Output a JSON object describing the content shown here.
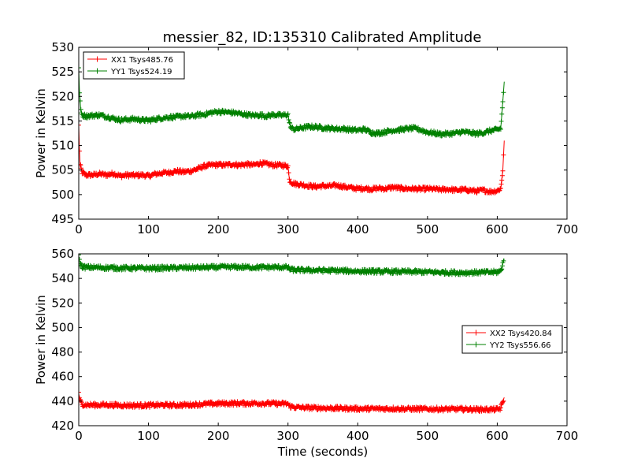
{
  "figure": {
    "title": "messier_82, ID:135310 Calibrated Amplitude"
  },
  "chart_data": [
    {
      "type": "line",
      "xlabel": "",
      "ylabel": "Power in Kelvin",
      "xlim": [
        0,
        700
      ],
      "ylim": [
        495,
        530
      ],
      "xticks": [
        0,
        100,
        200,
        300,
        400,
        500,
        600,
        700
      ],
      "yticks": [
        495,
        500,
        505,
        510,
        515,
        520,
        525,
        530
      ],
      "legend_position": "upper-left",
      "marker": "plus",
      "grid": false,
      "series": [
        {
          "name": "XX1 Tsys485.76",
          "color": "#ff0000",
          "points": [
            [
              0,
              514
            ],
            [
              1,
              509
            ],
            [
              2,
              506
            ],
            [
              5,
              504.5
            ],
            [
              10,
              504
            ],
            [
              20,
              504
            ],
            [
              30,
              504.2
            ],
            [
              40,
              504
            ],
            [
              50,
              504.3
            ],
            [
              60,
              503.8
            ],
            [
              70,
              504
            ],
            [
              80,
              503.9
            ],
            [
              90,
              504
            ],
            [
              100,
              503.8
            ],
            [
              110,
              504.2
            ],
            [
              120,
              504.4
            ],
            [
              130,
              504.5
            ],
            [
              140,
              504.8
            ],
            [
              150,
              504.6
            ],
            [
              160,
              504.8
            ],
            [
              170,
              505.2
            ],
            [
              180,
              505.8
            ],
            [
              190,
              506
            ],
            [
              200,
              506.1
            ],
            [
              210,
              506
            ],
            [
              220,
              506.2
            ],
            [
              230,
              506
            ],
            [
              240,
              506.2
            ],
            [
              250,
              506
            ],
            [
              260,
              506.4
            ],
            [
              270,
              506.2
            ],
            [
              280,
              506
            ],
            [
              290,
              506
            ],
            [
              300,
              505.8
            ],
            [
              302,
              503
            ],
            [
              305,
              502.5
            ],
            [
              310,
              502.2
            ],
            [
              320,
              502
            ],
            [
              330,
              501.8
            ],
            [
              340,
              501.6
            ],
            [
              350,
              501.8
            ],
            [
              360,
              501.7
            ],
            [
              370,
              501.9
            ],
            [
              380,
              501.6
            ],
            [
              390,
              501.4
            ],
            [
              400,
              501.2
            ],
            [
              410,
              501.3
            ],
            [
              420,
              501.1
            ],
            [
              430,
              501.3
            ],
            [
              440,
              501.2
            ],
            [
              450,
              501.5
            ],
            [
              460,
              501.3
            ],
            [
              470,
              501.2
            ],
            [
              480,
              501.2
            ],
            [
              490,
              501.1
            ],
            [
              500,
              501.2
            ],
            [
              510,
              501.1
            ],
            [
              520,
              501
            ],
            [
              530,
              501.1
            ],
            [
              540,
              500.9
            ],
            [
              550,
              501
            ],
            [
              560,
              500.9
            ],
            [
              570,
              500.7
            ],
            [
              580,
              500.9
            ],
            [
              590,
              500.6
            ],
            [
              600,
              500.8
            ],
            [
              605,
              501.2
            ],
            [
              608,
              505
            ],
            [
              610,
              511
            ]
          ]
        },
        {
          "name": "YY1 Tsys524.19",
          "color": "#008000",
          "points": [
            [
              0,
              525.5
            ],
            [
              1,
              521
            ],
            [
              3,
              517
            ],
            [
              5,
              516.2
            ],
            [
              10,
              516
            ],
            [
              20,
              516.1
            ],
            [
              30,
              516.2
            ],
            [
              40,
              515.9
            ],
            [
              50,
              515.5
            ],
            [
              60,
              515.2
            ],
            [
              70,
              515.3
            ],
            [
              80,
              515.4
            ],
            [
              90,
              515.2
            ],
            [
              100,
              515.1
            ],
            [
              110,
              515.4
            ],
            [
              120,
              515.6
            ],
            [
              130,
              515.8
            ],
            [
              140,
              515.8
            ],
            [
              150,
              516
            ],
            [
              160,
              515.9
            ],
            [
              170,
              516.2
            ],
            [
              180,
              516.3
            ],
            [
              190,
              516.7
            ],
            [
              200,
              516.9
            ],
            [
              210,
              516.8
            ],
            [
              220,
              516.7
            ],
            [
              230,
              516.5
            ],
            [
              240,
              516.3
            ],
            [
              250,
              516.1
            ],
            [
              260,
              516.2
            ],
            [
              270,
              516
            ],
            [
              280,
              516.3
            ],
            [
              290,
              516.1
            ],
            [
              300,
              516.3
            ],
            [
              302,
              514.5
            ],
            [
              305,
              513.5
            ],
            [
              310,
              513.3
            ],
            [
              320,
              513.6
            ],
            [
              330,
              513.8
            ],
            [
              340,
              513.8
            ],
            [
              350,
              513.6
            ],
            [
              360,
              513.5
            ],
            [
              370,
              513.4
            ],
            [
              380,
              513.4
            ],
            [
              390,
              513.2
            ],
            [
              400,
              513.1
            ],
            [
              410,
              513.3
            ],
            [
              420,
              512.6
            ],
            [
              430,
              512.5
            ],
            [
              440,
              512.8
            ],
            [
              450,
              513.1
            ],
            [
              460,
              513.2
            ],
            [
              470,
              513.4
            ],
            [
              480,
              513.5
            ],
            [
              490,
              513.2
            ],
            [
              500,
              512.7
            ],
            [
              510,
              512.5
            ],
            [
              520,
              512.3
            ],
            [
              530,
              512.4
            ],
            [
              540,
              512.5
            ],
            [
              550,
              512.8
            ],
            [
              560,
              512.6
            ],
            [
              570,
              512.4
            ],
            [
              580,
              512.6
            ],
            [
              590,
              513
            ],
            [
              600,
              513.2
            ],
            [
              605,
              513.5
            ],
            [
              608,
              519
            ],
            [
              610,
              523
            ]
          ]
        }
      ]
    },
    {
      "type": "line",
      "xlabel": "Time (seconds)",
      "ylabel": "Power in Kelvin",
      "xlim": [
        0,
        700
      ],
      "ylim": [
        420,
        560
      ],
      "xticks": [
        0,
        100,
        200,
        300,
        400,
        500,
        600,
        700
      ],
      "yticks": [
        420,
        440,
        460,
        480,
        500,
        520,
        540,
        560
      ],
      "legend_position": "center-right",
      "marker": "plus",
      "grid": false,
      "series": [
        {
          "name": "XX2 Tsys420.84",
          "color": "#ff0000",
          "points": [
            [
              0,
              446
            ],
            [
              2,
              440
            ],
            [
              5,
              437.5
            ],
            [
              10,
              437
            ],
            [
              20,
              436.8
            ],
            [
              40,
              437
            ],
            [
              60,
              436.6
            ],
            [
              80,
              436.5
            ],
            [
              100,
              436.6
            ],
            [
              120,
              436.8
            ],
            [
              140,
              436.7
            ],
            [
              160,
              437
            ],
            [
              180,
              437.6
            ],
            [
              200,
              438
            ],
            [
              220,
              438.2
            ],
            [
              240,
              438.1
            ],
            [
              260,
              438.3
            ],
            [
              280,
              438
            ],
            [
              300,
              437.8
            ],
            [
              302,
              436
            ],
            [
              310,
              435
            ],
            [
              330,
              434.6
            ],
            [
              350,
              434.4
            ],
            [
              370,
              434.2
            ],
            [
              390,
              434
            ],
            [
              410,
              433.8
            ],
            [
              430,
              433.8
            ],
            [
              450,
              433.9
            ],
            [
              470,
              433.7
            ],
            [
              490,
              433.6
            ],
            [
              510,
              433.6
            ],
            [
              530,
              433.5
            ],
            [
              550,
              433.5
            ],
            [
              570,
              433.3
            ],
            [
              590,
              433.2
            ],
            [
              600,
              433.3
            ],
            [
              605,
              434
            ],
            [
              608,
              440
            ],
            [
              610,
              443
            ]
          ]
        },
        {
          "name": "YY2 Tsys556.66",
          "color": "#008000",
          "points": [
            [
              0,
              558
            ],
            [
              2,
              552
            ],
            [
              5,
              549.5
            ],
            [
              10,
              549
            ],
            [
              20,
              549
            ],
            [
              40,
              548.7
            ],
            [
              60,
              548.4
            ],
            [
              80,
              548.3
            ],
            [
              100,
              548.2
            ],
            [
              120,
              548.4
            ],
            [
              140,
              548.5
            ],
            [
              160,
              548.7
            ],
            [
              180,
              548.9
            ],
            [
              200,
              549.1
            ],
            [
              220,
              549.2
            ],
            [
              240,
              549.1
            ],
            [
              260,
              549
            ],
            [
              280,
              549.1
            ],
            [
              300,
              549
            ],
            [
              302,
              547.5
            ],
            [
              310,
              546.8
            ],
            [
              330,
              546.7
            ],
            [
              350,
              546.5
            ],
            [
              370,
              546.3
            ],
            [
              390,
              546
            ],
            [
              410,
              545.8
            ],
            [
              430,
              545.6
            ],
            [
              450,
              545.5
            ],
            [
              470,
              545.4
            ],
            [
              490,
              545.3
            ],
            [
              510,
              545
            ],
            [
              530,
              544.8
            ],
            [
              550,
              544.6
            ],
            [
              570,
              544.8
            ],
            [
              590,
              545
            ],
            [
              600,
              545.2
            ],
            [
              605,
              546
            ],
            [
              608,
              552
            ],
            [
              610,
              556
            ]
          ]
        }
      ]
    }
  ]
}
